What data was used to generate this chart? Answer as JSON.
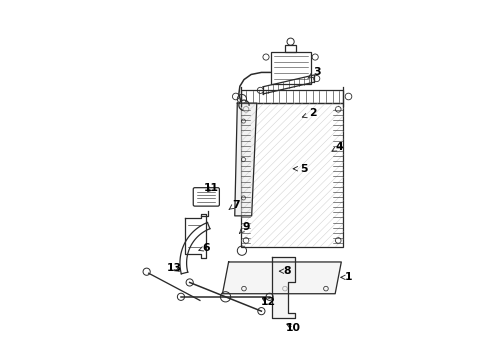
{
  "bg_color": "#ffffff",
  "line_color": "#2a2a2a",
  "label_color": "#000000",
  "label_positions": {
    "1": {
      "lpos": [
        4.72,
        5.1
      ],
      "apos": [
        4.55,
        5.1
      ]
    },
    "2": {
      "lpos": [
        4.02,
        8.3
      ],
      "apos": [
        3.8,
        8.22
      ]
    },
    "3": {
      "lpos": [
        4.1,
        9.1
      ],
      "apos": [
        3.92,
        8.98
      ]
    },
    "4": {
      "lpos": [
        4.55,
        7.65
      ],
      "apos": [
        4.38,
        7.55
      ]
    },
    "5": {
      "lpos": [
        3.85,
        7.22
      ],
      "apos": [
        3.62,
        7.22
      ]
    },
    "6": {
      "lpos": [
        1.95,
        5.68
      ],
      "apos": [
        1.78,
        5.62
      ]
    },
    "7": {
      "lpos": [
        2.52,
        6.52
      ],
      "apos": [
        2.38,
        6.42
      ]
    },
    "8": {
      "lpos": [
        3.52,
        5.22
      ],
      "apos": [
        3.35,
        5.22
      ]
    },
    "9": {
      "lpos": [
        2.72,
        6.08
      ],
      "apos": [
        2.58,
        5.95
      ]
    },
    "10": {
      "lpos": [
        3.65,
        4.12
      ],
      "apos": [
        3.45,
        4.22
      ]
    },
    "11": {
      "lpos": [
        2.05,
        6.85
      ],
      "apos": [
        1.92,
        6.72
      ]
    },
    "12": {
      "lpos": [
        3.15,
        4.62
      ],
      "apos": [
        2.98,
        4.72
      ]
    },
    "13": {
      "lpos": [
        1.32,
        5.28
      ],
      "apos": [
        1.48,
        5.18
      ]
    }
  }
}
